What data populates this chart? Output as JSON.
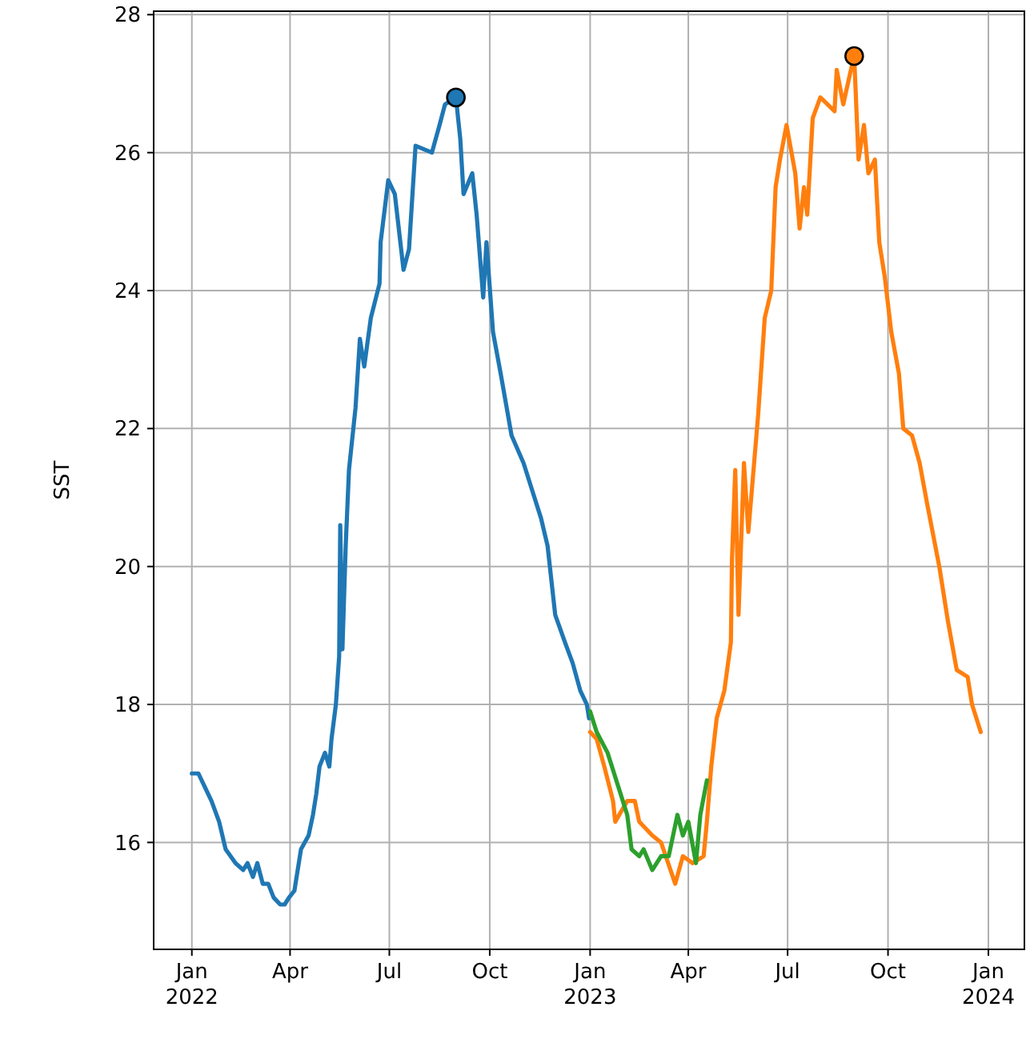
{
  "chart_data": {
    "type": "line",
    "ylabel": "SST",
    "xlim": [
      "2021-11-27",
      "2024-02-03"
    ],
    "ylim": [
      14.45,
      28.05
    ],
    "xticks": [
      {
        "value": "2022-01-01",
        "label": "Jan\n2022"
      },
      {
        "value": "2022-04-01",
        "label": "Apr"
      },
      {
        "value": "2022-07-01",
        "label": "Jul"
      },
      {
        "value": "2022-10-01",
        "label": "Oct"
      },
      {
        "value": "2023-01-01",
        "label": "Jan\n2023"
      },
      {
        "value": "2023-04-01",
        "label": "Apr"
      },
      {
        "value": "2023-07-01",
        "label": "Jul"
      },
      {
        "value": "2023-10-01",
        "label": "Oct"
      },
      {
        "value": "2024-01-01",
        "label": "Jan\n2024"
      }
    ],
    "yticks": [
      16,
      18,
      20,
      22,
      24,
      26,
      28
    ],
    "grid": true,
    "line_style": "solid",
    "series": [
      {
        "color": "#1f77b4",
        "x": [
          "2022-01-01",
          "2022-01-07",
          "2022-01-19",
          "2022-01-26",
          "2022-02-01",
          "2022-02-10",
          "2022-02-17",
          "2022-02-21",
          "2022-02-26",
          "2022-03-02",
          "2022-03-07",
          "2022-03-12",
          "2022-03-17",
          "2022-03-23",
          "2022-03-27",
          "2022-03-31",
          "2022-04-05",
          "2022-04-11",
          "2022-04-18",
          "2022-04-22",
          "2022-04-25",
          "2022-04-28",
          "2022-05-03",
          "2022-05-07",
          "2022-05-09",
          "2022-05-13",
          "2022-05-16",
          "2022-05-17",
          "2022-05-19",
          "2022-05-22",
          "2022-05-25",
          "2022-05-31",
          "2022-06-04",
          "2022-06-08",
          "2022-06-14",
          "2022-06-22",
          "2022-06-23",
          "2022-06-30",
          "2022-07-06",
          "2022-07-14",
          "2022-07-19",
          "2022-07-25",
          "2022-08-09",
          "2022-08-16",
          "2022-08-21",
          "2022-08-31",
          "2022-09-04",
          "2022-09-07",
          "2022-09-15",
          "2022-09-19",
          "2022-09-25",
          "2022-09-28",
          "2022-10-04",
          "2022-10-11",
          "2022-10-21",
          "2022-11-01",
          "2022-11-09",
          "2022-11-17",
          "2022-11-23",
          "2022-11-30",
          "2022-12-09",
          "2022-12-16",
          "2022-12-23",
          "2022-12-29",
          "2022-12-31"
        ],
        "values": [
          17.0,
          17.0,
          16.6,
          16.3,
          15.9,
          15.7,
          15.6,
          15.7,
          15.5,
          15.7,
          15.4,
          15.4,
          15.2,
          15.1,
          15.1,
          15.2,
          15.3,
          15.9,
          16.1,
          16.4,
          16.7,
          17.1,
          17.3,
          17.1,
          17.5,
          18.0,
          18.7,
          20.6,
          18.8,
          20.3,
          21.4,
          22.3,
          23.3,
          22.9,
          23.6,
          24.1,
          24.7,
          25.6,
          25.4,
          24.3,
          24.6,
          26.1,
          26.0,
          26.4,
          26.7,
          26.8,
          26.2,
          25.4,
          25.7,
          25.1,
          23.9,
          24.7,
          23.4,
          22.8,
          21.9,
          21.5,
          21.1,
          20.7,
          20.3,
          19.3,
          18.9,
          18.6,
          18.2,
          18.0,
          17.8
        ]
      },
      {
        "color": "#ff7f0e",
        "x": [
          "2023-01-01",
          "2023-01-07",
          "2023-01-14",
          "2023-01-22",
          "2023-01-24",
          "2023-02-04",
          "2023-02-11",
          "2023-02-15",
          "2023-02-27",
          "2023-03-07",
          "2023-03-20",
          "2023-03-27",
          "2023-04-05",
          "2023-04-15",
          "2023-04-18",
          "2023-04-22",
          "2023-04-27",
          "2023-05-04",
          "2023-05-10",
          "2023-05-11",
          "2023-05-14",
          "2023-05-17",
          "2023-05-22",
          "2023-05-26",
          "2023-06-04",
          "2023-06-10",
          "2023-06-16",
          "2023-06-20",
          "2023-06-24",
          "2023-06-30",
          "2023-07-08",
          "2023-07-12",
          "2023-07-16",
          "2023-07-19",
          "2023-07-24",
          "2023-07-31",
          "2023-08-13",
          "2023-08-15",
          "2023-08-21",
          "2023-08-28",
          "2023-08-31",
          "2023-09-04",
          "2023-09-09",
          "2023-09-13",
          "2023-09-19",
          "2023-09-23",
          "2023-09-28",
          "2023-10-04",
          "2023-10-11",
          "2023-10-15",
          "2023-10-23",
          "2023-10-30",
          "2023-11-06",
          "2023-11-17",
          "2023-11-25",
          "2023-12-03",
          "2023-12-13",
          "2023-12-17",
          "2023-12-25"
        ],
        "values": [
          17.6,
          17.5,
          17.1,
          16.6,
          16.3,
          16.6,
          16.6,
          16.3,
          16.1,
          16.0,
          15.4,
          15.8,
          15.7,
          15.8,
          16.3,
          17.1,
          17.8,
          18.2,
          18.9,
          20.1,
          21.4,
          19.3,
          21.5,
          20.5,
          22.2,
          23.6,
          24.0,
          25.5,
          25.9,
          26.4,
          25.7,
          24.9,
          25.5,
          25.1,
          26.5,
          26.8,
          26.6,
          27.2,
          26.7,
          27.2,
          27.4,
          25.9,
          26.4,
          25.7,
          25.9,
          24.7,
          24.2,
          23.4,
          22.8,
          22.0,
          21.9,
          21.5,
          20.9,
          20.0,
          19.2,
          18.5,
          18.4,
          18.0,
          17.6
        ]
      },
      {
        "color": "#2ca02c",
        "x": [
          "2023-01-01",
          "2023-01-07",
          "2023-01-17",
          "2023-01-27",
          "2023-02-04",
          "2023-02-08",
          "2023-02-15",
          "2023-02-19",
          "2023-02-27",
          "2023-03-07",
          "2023-03-14",
          "2023-03-22",
          "2023-03-27",
          "2023-04-01",
          "2023-04-08",
          "2023-04-12",
          "2023-04-18"
        ],
        "values": [
          17.9,
          17.6,
          17.3,
          16.8,
          16.4,
          15.9,
          15.8,
          15.9,
          15.6,
          15.8,
          15.8,
          16.4,
          16.1,
          16.3,
          15.7,
          16.4,
          16.9
        ]
      },
      {
        "type": "scatter",
        "marker": "circle",
        "color": "#1f77b4",
        "x": [
          "2022-08-31"
        ],
        "values": [
          26.8
        ]
      },
      {
        "type": "scatter",
        "marker": "circle",
        "color": "#ff7f0e",
        "x": [
          "2023-08-31"
        ],
        "values": [
          27.4
        ]
      }
    ]
  }
}
